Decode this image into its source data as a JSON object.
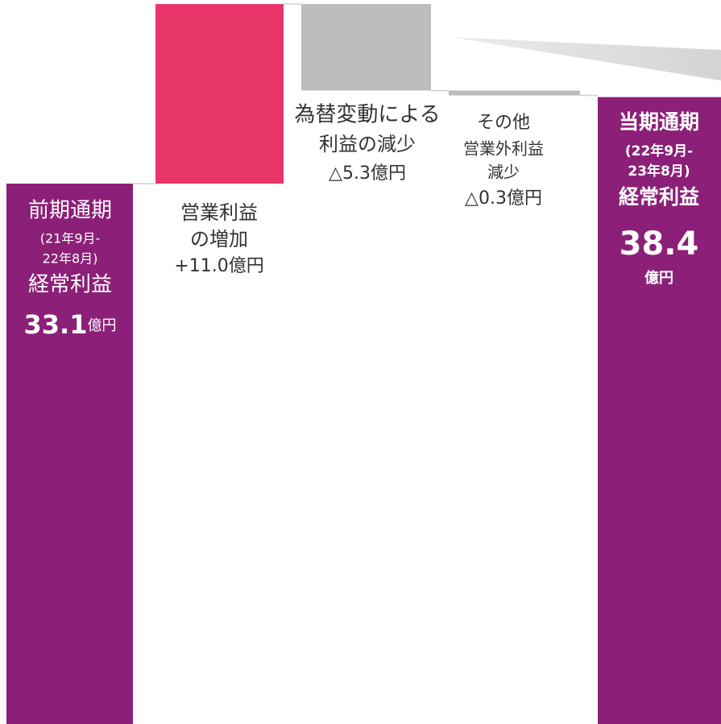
{
  "chart_data": {
    "type": "waterfall",
    "categories": [
      [
        "前期通期",
        "(21年9月-",
        "22年8月)",
        "経常利益"
      ],
      [
        "営業利益",
        "の増加"
      ],
      [
        "為替変動による",
        "利益の減少"
      ],
      [
        "その他",
        "営業外利益",
        "減少"
      ],
      [
        "当期通期",
        "(22年9月-",
        "23年8月)",
        "経常利益"
      ]
    ],
    "values": [
      33.1,
      11.0,
      -5.3,
      -0.3,
      38.4
    ],
    "value_labels": [
      null,
      "+11.0億円",
      "△5.3億円",
      "△0.3億円",
      null
    ],
    "unit": "億円",
    "colors": [
      "#8c1f78",
      "#e8366a",
      "#bdbdbd",
      "#bdbdbd",
      "#8c1f78"
    ]
  }
}
